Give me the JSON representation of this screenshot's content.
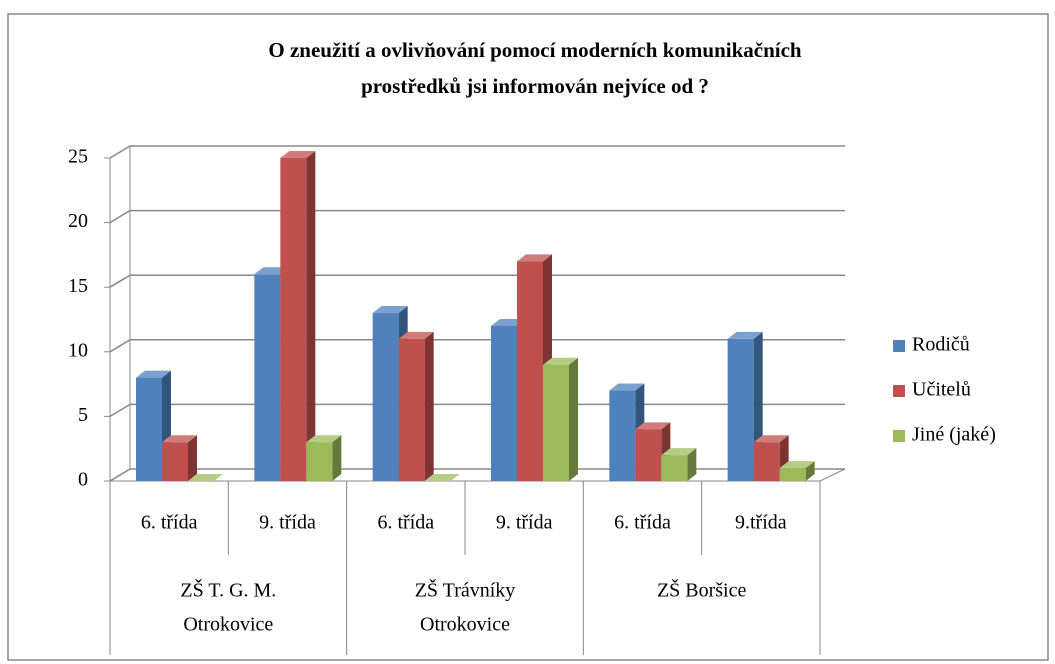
{
  "chart_data": {
    "type": "bar3d",
    "title": [
      "O zneužití a ovlivňování pomocí moderních komunikačních",
      "prostředků jsi informován nejvíce od ?"
    ],
    "categories": [
      "6. třída",
      "9. třída",
      "6. třída",
      "9. třída",
      "6. třída",
      "9.třída"
    ],
    "groups": [
      [
        "ZŠ T. G. M.",
        "Otrokovice"
      ],
      [
        "ZŠ Trávníky",
        "Otrokovice"
      ],
      [
        "ZŠ Boršice"
      ]
    ],
    "series": [
      {
        "name": "Rodičů",
        "color": "#4f81bd",
        "values": [
          8,
          16,
          13,
          12,
          7,
          11
        ]
      },
      {
        "name": "Učitelů",
        "color": "#c0504d",
        "values": [
          3,
          25,
          11,
          17,
          4,
          3
        ]
      },
      {
        "name": "Jiné (jaké)",
        "color": "#9bbb59",
        "values": [
          0,
          3,
          0,
          9,
          2,
          1
        ]
      }
    ],
    "ylim": [
      0,
      25
    ],
    "yticks": [
      0,
      5,
      10,
      15,
      20,
      25
    ],
    "grid": true,
    "legend": "right"
  }
}
